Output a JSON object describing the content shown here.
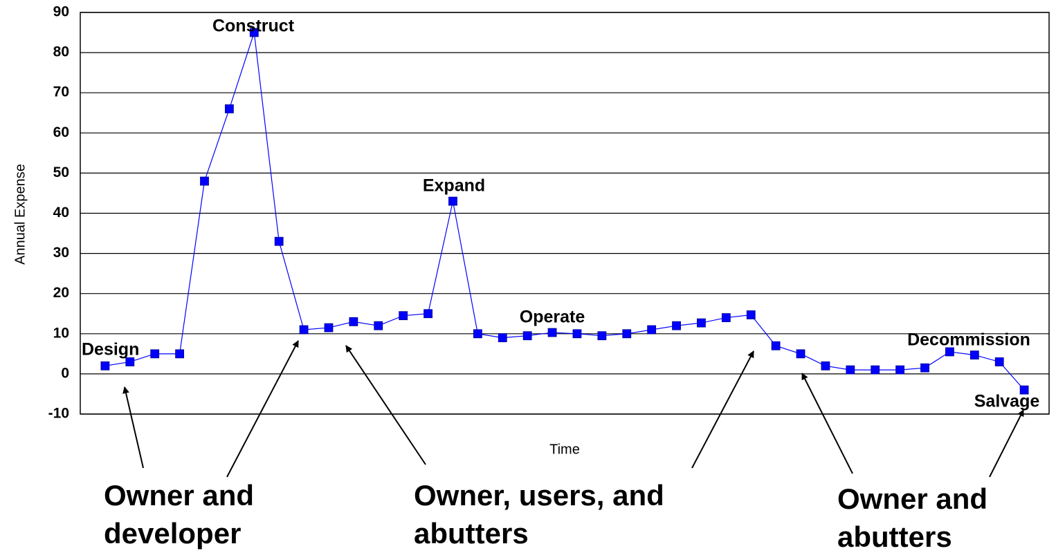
{
  "chart_data": {
    "type": "line",
    "y_label": "Annual Expense",
    "x_label": "Time",
    "x": [
      1,
      2,
      3,
      4,
      5,
      6,
      7,
      8,
      9,
      10,
      11,
      12,
      13,
      14,
      15,
      16,
      17,
      18,
      19,
      20,
      21,
      22,
      23,
      24,
      25,
      26,
      27,
      28,
      29,
      30,
      31,
      32,
      33,
      34,
      35,
      36,
      37,
      38
    ],
    "xlim": [
      0,
      39
    ],
    "series": [
      {
        "color": "#0000ff",
        "values": [
          2,
          3,
          5,
          5,
          48,
          66,
          85,
          33,
          11,
          11.5,
          13,
          12,
          14.5,
          15,
          43,
          10,
          9,
          9.5,
          10.3,
          10,
          9.5,
          10,
          11,
          12,
          12.7,
          14,
          14.7,
          7,
          5,
          2,
          1,
          1,
          1,
          1.5,
          5.5,
          4.7,
          3,
          -4
        ]
      }
    ],
    "ylim": [
      -10,
      90
    ],
    "yticks": [
      -10,
      0,
      10,
      20,
      30,
      40,
      50,
      60,
      70,
      80,
      90
    ],
    "grid": true,
    "phase_labels": [
      "Design",
      "Construct",
      "Expand",
      "Operate",
      "Decommission",
      "Salvage"
    ],
    "annotations": [
      {
        "lines": [
          "Owner and",
          "developer"
        ]
      },
      {
        "lines": [
          "Owner, users, and",
          "abutters"
        ]
      },
      {
        "lines": [
          "Owner and",
          "abutters"
        ]
      }
    ]
  }
}
